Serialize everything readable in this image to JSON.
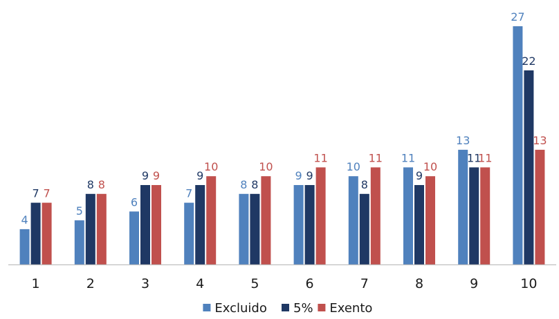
{
  "chart_data": {
    "type": "bar",
    "categories": [
      "1",
      "2",
      "3",
      "4",
      "5",
      "6",
      "7",
      "8",
      "9",
      "10"
    ],
    "series": [
      {
        "name": "Excluido",
        "color": "#4f81bd",
        "values": [
          4,
          5,
          6,
          7,
          8,
          9,
          10,
          11,
          13,
          27
        ],
        "labels": [
          "4",
          "5",
          "6",
          "7",
          "8",
          "9",
          "10",
          "11",
          "13",
          "27"
        ]
      },
      {
        "name": "5%",
        "color": "#1f3864",
        "values": [
          7,
          8,
          9,
          9,
          8,
          9,
          8,
          9,
          11,
          22
        ],
        "labels": [
          "7",
          "8",
          "9",
          "9",
          "8",
          "9",
          "8",
          "9",
          "11",
          "22"
        ]
      },
      {
        "name": "Exento",
        "color": "#c0504d",
        "values": [
          7,
          8,
          9,
          10,
          10,
          11,
          11,
          10,
          11,
          13
        ],
        "labels": [
          "7",
          "8",
          "9",
          "10",
          "10",
          "11",
          "11",
          "10",
          "11",
          "13"
        ]
      }
    ],
    "ylim": [
      0,
      27
    ],
    "grid": false,
    "legend_position": "bottom-center",
    "title": "",
    "xlabel": "",
    "ylabel": ""
  }
}
